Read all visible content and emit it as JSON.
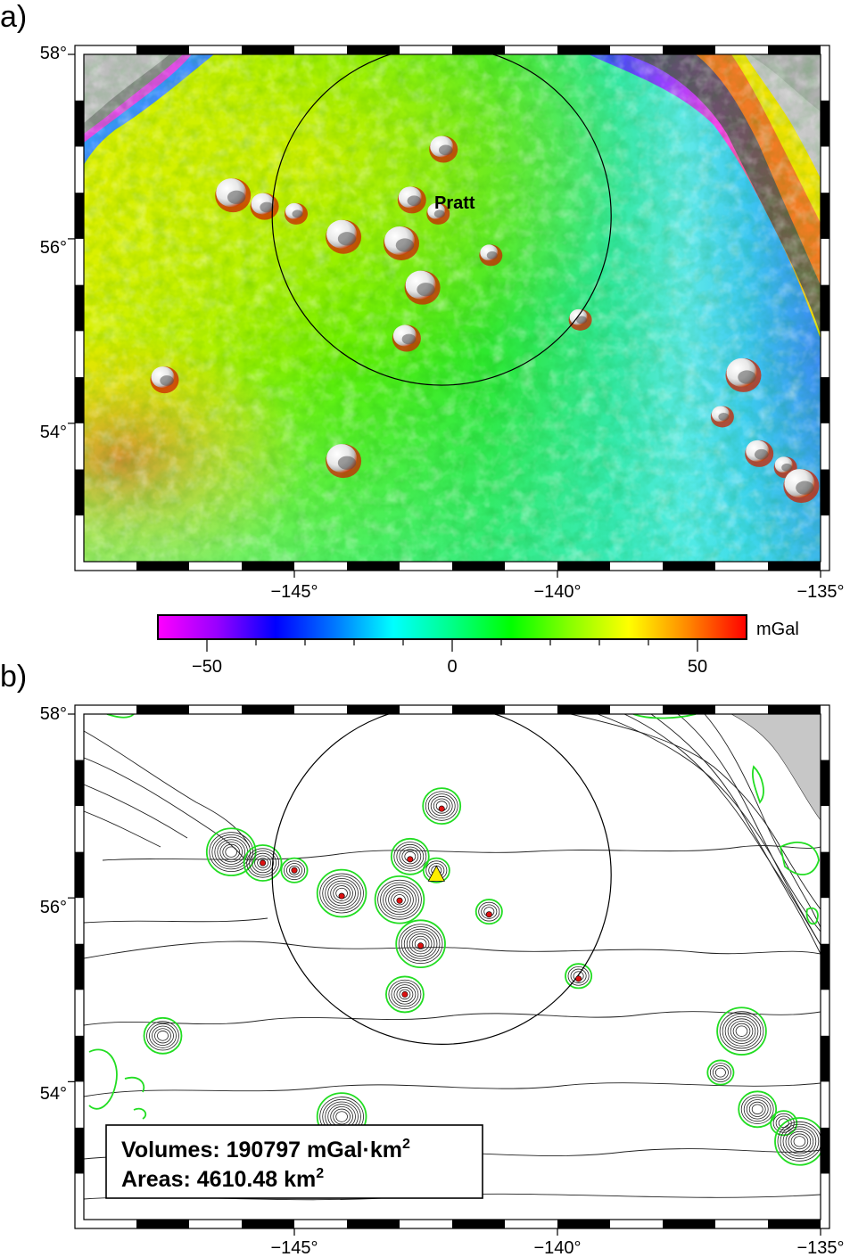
{
  "panel_a": {
    "label": "a)",
    "y_ticks": [
      "58°",
      "56°",
      "54°"
    ],
    "x_ticks": [
      "−145°",
      "−140°",
      "−135°"
    ],
    "seamount_label": "Pratt",
    "colorbar": {
      "unit": "mGal",
      "ticks": [
        "−50",
        "0",
        "50"
      ],
      "range": [
        -60,
        60
      ],
      "stops": [
        "#ff00ff",
        "#9900ff",
        "#0000ff",
        "#0077ff",
        "#00ffff",
        "#00ff88",
        "#00ff00",
        "#88ff00",
        "#ffff00",
        "#ff8800",
        "#ff0000"
      ]
    }
  },
  "panel_b": {
    "label": "b)",
    "y_ticks": [
      "58°",
      "56°",
      "54°"
    ],
    "x_ticks": [
      "−145°",
      "−140°",
      "−135°"
    ],
    "volumes_label": "Volumes: 190797 mGal·km",
    "volumes_sup": "2",
    "areas_label": "Areas: 4610.48 km",
    "areas_sup": "2"
  },
  "map_extent": {
    "lon": [
      -149,
      -135
    ],
    "lat": [
      52.5,
      58
    ]
  },
  "search_circle_center": {
    "lon": -142.2,
    "lat": 56.25
  },
  "seamounts": [
    {
      "lon": -146.2,
      "lat": 56.5
    },
    {
      "lon": -145.6,
      "lat": 56.38
    },
    {
      "lon": -145.0,
      "lat": 56.3
    },
    {
      "lon": -144.1,
      "lat": 56.05
    },
    {
      "lon": -142.8,
      "lat": 56.45
    },
    {
      "lon": -142.3,
      "lat": 56.3
    },
    {
      "lon": -143.0,
      "lat": 55.98
    },
    {
      "lon": -142.2,
      "lat": 57.0
    },
    {
      "lon": -141.3,
      "lat": 55.85
    },
    {
      "lon": -142.6,
      "lat": 55.5
    },
    {
      "lon": -142.9,
      "lat": 54.95
    },
    {
      "lon": -139.6,
      "lat": 55.15
    },
    {
      "lon": -144.1,
      "lat": 53.62
    },
    {
      "lon": -147.5,
      "lat": 54.5
    },
    {
      "lon": -136.9,
      "lat": 54.1
    },
    {
      "lon": -136.5,
      "lat": 54.55
    },
    {
      "lon": -136.2,
      "lat": 53.7
    },
    {
      "lon": -135.7,
      "lat": 53.55
    },
    {
      "lon": -135.4,
      "lat": 53.35
    }
  ],
  "anomaly_stations": [
    {
      "lon": -145.6,
      "lat": 56.38
    },
    {
      "lon": -145.0,
      "lat": 56.3
    },
    {
      "lon": -144.1,
      "lat": 56.02
    },
    {
      "lon": -142.8,
      "lat": 56.42
    },
    {
      "lon": -142.2,
      "lat": 56.97
    },
    {
      "lon": -143.0,
      "lat": 55.97
    },
    {
      "lon": -141.3,
      "lat": 55.82
    },
    {
      "lon": -142.6,
      "lat": 55.48
    },
    {
      "lon": -142.9,
      "lat": 54.95
    },
    {
      "lon": -139.6,
      "lat": 55.12
    }
  ],
  "pratt_marker": {
    "lon": -142.3,
    "lat": 56.25
  }
}
